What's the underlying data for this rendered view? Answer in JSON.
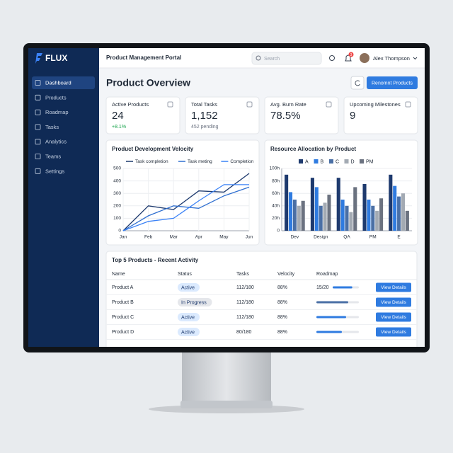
{
  "sidebar": {
    "brand": "FLUX",
    "nav": [
      "Dashboard",
      "Products",
      "Roadmap",
      "Tasks",
      "Analytics",
      "Teams",
      "Settings"
    ]
  },
  "topbar": {
    "title": "Product Management Portal",
    "search_placeholder": "Search",
    "notifications": "3",
    "user": "Alex Thompson"
  },
  "page": {
    "title": "Product Overview",
    "action": "Renomnt Products"
  },
  "stats": [
    {
      "label": "Active Products",
      "value": "24",
      "sub": "+8.1%"
    },
    {
      "label": "Total Tasks",
      "value": "1,152",
      "sub": "452 pending"
    },
    {
      "label": "Avg. Burn Rate",
      "value": "78.5%"
    },
    {
      "label": "Upcoming Milestones",
      "value": "9"
    }
  ],
  "chart_data": [
    {
      "type": "line",
      "title": "Product Development Velocity",
      "categories": [
        "Jan",
        "Feb",
        "Mar",
        "Apr",
        "May",
        "Jun"
      ],
      "series": [
        {
          "name": "Task completion",
          "color": "#1e3a6e",
          "values": [
            0,
            200,
            170,
            320,
            310,
            460
          ]
        },
        {
          "name": "Task meting",
          "color": "#2f6fd0",
          "values": [
            0,
            120,
            200,
            180,
            280,
            350
          ]
        },
        {
          "name": "Completion",
          "color": "#3b82f6",
          "values": [
            0,
            75,
            100,
            240,
            370,
            370
          ]
        }
      ],
      "ylim": [
        0,
        500
      ],
      "yticks": [
        0,
        100,
        200,
        300,
        400,
        500
      ],
      "grid": true
    },
    {
      "type": "bar",
      "title": "Resource Allocation by Product",
      "categories": [
        "Dev",
        "Design",
        "QA",
        "PM",
        "E"
      ],
      "series": [
        {
          "name": "A",
          "color": "#1e3a6e",
          "values": [
            90,
            85,
            85,
            75,
            90
          ]
        },
        {
          "name": "B",
          "color": "#2f7be0",
          "values": [
            62,
            70,
            50,
            50,
            72
          ]
        },
        {
          "name": "C",
          "color": "#4a6fa5",
          "values": [
            50,
            40,
            40,
            40,
            55
          ]
        },
        {
          "name": "D",
          "color": "#a3aab3",
          "values": [
            40,
            45,
            30,
            32,
            60
          ]
        },
        {
          "name": "PM",
          "color": "#6b7280",
          "values": [
            48,
            58,
            70,
            52,
            32
          ]
        }
      ],
      "ylim": [
        0,
        100
      ],
      "yticks": [
        0,
        {
          "value": 20,
          "label": "20h"
        },
        {
          "value": 40,
          "label": "40h"
        },
        {
          "value": 60,
          "label": "60h"
        },
        {
          "value": 80,
          "label": "80h"
        },
        {
          "value": 100,
          "label": "100h"
        }
      ],
      "grid": true
    }
  ],
  "table": {
    "title": "Top 5 Products - Recent Activity",
    "columns": [
      "Name",
      "Status",
      "Tasks",
      "Velocity",
      "Roadmap"
    ],
    "rows": [
      {
        "name": "Product A",
        "status": "Active",
        "tasks": "112/180",
        "velocity": "88%",
        "roadmap": "15/20",
        "progress": 75,
        "action": "View Details"
      },
      {
        "name": "Product B",
        "status": "In Progress",
        "tasks": "112/180",
        "velocity": "88%",
        "progress": 75,
        "action": "View Details"
      },
      {
        "name": "Product C",
        "status": "Active",
        "tasks": "112/180",
        "velocity": "88%",
        "progress": 70,
        "action": "View Details"
      },
      {
        "name": "Product D",
        "status": "Active",
        "tasks": "80/180",
        "velocity": "88%",
        "progress": 60,
        "action": "View Details"
      }
    ]
  }
}
